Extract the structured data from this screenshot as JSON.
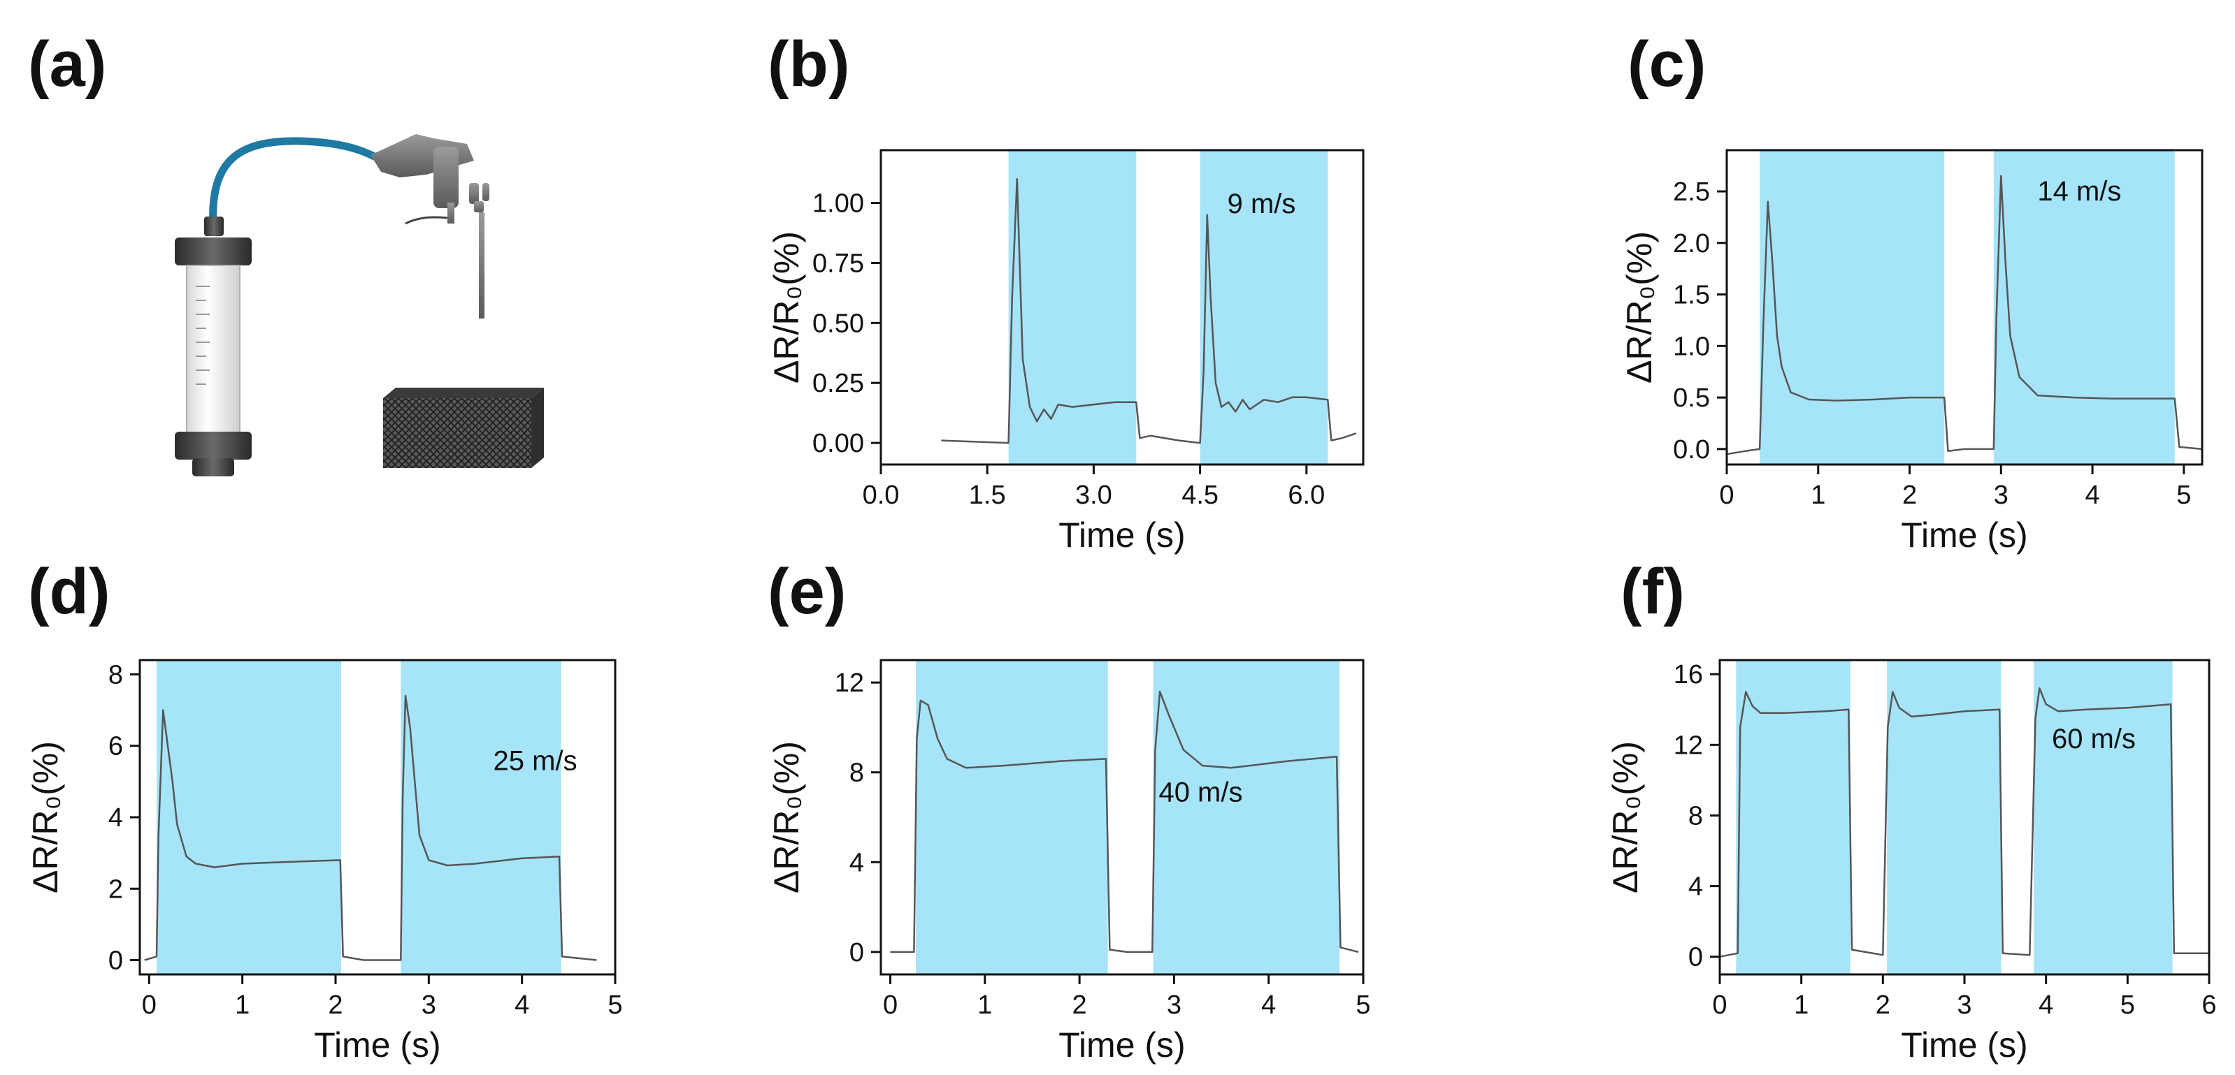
{
  "panel_labels": {
    "a": "(a)",
    "b": "(b)",
    "c": "(c)",
    "d": "(d)",
    "e": "(e)",
    "f": "(f)"
  },
  "colors": {
    "shade": "#a6e4f9",
    "trace": "#555555",
    "axis": "#111111",
    "tube": "#1e7aa3"
  },
  "chart_data": [
    {
      "id": "b",
      "type": "line",
      "title": "",
      "xlabel": "Time (s)",
      "ylabel": "ΔR/R₀(%)",
      "annotation": "9 m/s",
      "xlim": [
        0,
        6.8
      ],
      "ylim": [
        -0.09,
        1.22
      ],
      "xticks": [
        0,
        1.5,
        3,
        4.5,
        6
      ],
      "xticklabels": [
        "0.0",
        "1.5",
        "3.0",
        "4.5",
        "6.0"
      ],
      "yticks": [
        0,
        0.25,
        0.5,
        0.75,
        1.0
      ],
      "yticklabels": [
        "0.00",
        "0.25",
        "0.50",
        "0.75",
        "1.00"
      ],
      "shaded_intervals": [
        [
          1.8,
          3.6
        ],
        [
          4.5,
          6.3
        ]
      ],
      "series": [
        {
          "name": "9 m/s",
          "x": [
            0.85,
            1.8,
            1.85,
            1.92,
            2.0,
            2.1,
            2.2,
            2.3,
            2.4,
            2.5,
            2.7,
            3.0,
            3.3,
            3.6,
            3.65,
            3.8,
            4.2,
            4.5,
            4.55,
            4.6,
            4.65,
            4.72,
            4.8,
            4.9,
            5.0,
            5.1,
            5.2,
            5.4,
            5.6,
            5.8,
            6.0,
            6.3,
            6.35,
            6.5,
            6.7
          ],
          "y": [
            0.01,
            0.0,
            0.6,
            1.1,
            0.35,
            0.15,
            0.09,
            0.14,
            0.1,
            0.16,
            0.15,
            0.16,
            0.17,
            0.17,
            0.02,
            0.03,
            0.01,
            0.0,
            0.3,
            0.95,
            0.6,
            0.25,
            0.15,
            0.17,
            0.13,
            0.18,
            0.14,
            0.18,
            0.17,
            0.19,
            0.19,
            0.18,
            0.01,
            0.02,
            0.04
          ]
        }
      ]
    },
    {
      "id": "c",
      "type": "line",
      "title": "",
      "xlabel": "Time (s)",
      "ylabel": "ΔR/R₀(%)",
      "annotation": "14 m/s",
      "xlim": [
        0,
        5.2
      ],
      "ylim": [
        -0.15,
        2.9
      ],
      "xticks": [
        0,
        1,
        2,
        3,
        4,
        5
      ],
      "xticklabels": [
        "0",
        "1",
        "2",
        "3",
        "4",
        "5"
      ],
      "yticks": [
        0,
        0.5,
        1.0,
        1.5,
        2.0,
        2.5
      ],
      "yticklabels": [
        "0.0",
        "0.5",
        "1.0",
        "1.5",
        "2.0",
        "2.5"
      ],
      "shaded_intervals": [
        [
          0.36,
          2.38
        ],
        [
          2.92,
          4.9
        ]
      ],
      "series": [
        {
          "name": "14 m/s",
          "x": [
            0,
            0.2,
            0.36,
            0.4,
            0.45,
            0.5,
            0.55,
            0.6,
            0.7,
            0.9,
            1.2,
            1.6,
            2.0,
            2.38,
            2.42,
            2.6,
            2.92,
            2.95,
            3.0,
            3.05,
            3.1,
            3.2,
            3.4,
            3.8,
            4.2,
            4.6,
            4.9,
            4.95,
            5.2
          ],
          "y": [
            -0.05,
            -0.02,
            0.0,
            1.2,
            2.4,
            1.8,
            1.1,
            0.8,
            0.55,
            0.48,
            0.47,
            0.48,
            0.5,
            0.5,
            -0.02,
            0.0,
            0.0,
            1.3,
            2.65,
            1.8,
            1.1,
            0.7,
            0.52,
            0.5,
            0.49,
            0.49,
            0.49,
            0.02,
            0.0
          ]
        }
      ]
    },
    {
      "id": "d",
      "type": "line",
      "title": "",
      "xlabel": "Time (s)",
      "ylabel": "ΔR/R₀(%)",
      "annotation": "25 m/s",
      "xlim": [
        -0.1,
        5.0
      ],
      "ylim": [
        -0.4,
        8.4
      ],
      "xticks": [
        0,
        1,
        2,
        3,
        4,
        5
      ],
      "xticklabels": [
        "0",
        "1",
        "2",
        "3",
        "4",
        "5"
      ],
      "yticks": [
        0,
        2,
        4,
        6,
        8
      ],
      "yticklabels": [
        "0",
        "2",
        "4",
        "6",
        "8"
      ],
      "shaded_intervals": [
        [
          0.08,
          2.06
        ],
        [
          2.7,
          4.42
        ]
      ],
      "series": [
        {
          "name": "25 m/s",
          "x": [
            -0.05,
            0.08,
            0.1,
            0.15,
            0.2,
            0.25,
            0.3,
            0.4,
            0.5,
            0.7,
            1.0,
            1.5,
            2.05,
            2.08,
            2.3,
            2.7,
            2.72,
            2.75,
            2.8,
            2.85,
            2.9,
            3.0,
            3.2,
            3.5,
            4.0,
            4.4,
            4.43,
            4.8
          ],
          "y": [
            0.0,
            0.1,
            3.5,
            7.0,
            6.0,
            5.0,
            3.8,
            2.9,
            2.7,
            2.6,
            2.7,
            2.75,
            2.8,
            0.1,
            0.0,
            0.0,
            4.5,
            7.4,
            6.5,
            5.0,
            3.5,
            2.8,
            2.65,
            2.7,
            2.85,
            2.9,
            0.1,
            0.0
          ]
        }
      ]
    },
    {
      "id": "e",
      "type": "line",
      "title": "",
      "xlabel": "Time (s)",
      "ylabel": "ΔR/R₀(%)",
      "annotation": "40 m/s",
      "xlim": [
        -0.1,
        5.0
      ],
      "ylim": [
        -1.0,
        13.0
      ],
      "xticks": [
        0,
        1,
        2,
        3,
        4,
        5
      ],
      "xticklabels": [
        "0",
        "1",
        "2",
        "3",
        "4",
        "5"
      ],
      "yticks": [
        0,
        4,
        8,
        12
      ],
      "yticklabels": [
        "0",
        "4",
        "8",
        "12"
      ],
      "shaded_intervals": [
        [
          0.27,
          2.3
        ],
        [
          2.78,
          4.75
        ]
      ],
      "series": [
        {
          "name": "40 m/s",
          "x": [
            0.0,
            0.25,
            0.28,
            0.32,
            0.4,
            0.5,
            0.6,
            0.8,
            1.2,
            1.8,
            2.28,
            2.32,
            2.5,
            2.77,
            2.8,
            2.85,
            2.95,
            3.1,
            3.3,
            3.6,
            4.2,
            4.72,
            4.76,
            4.95
          ],
          "y": [
            0.0,
            0.0,
            9.5,
            11.2,
            11.0,
            9.5,
            8.6,
            8.2,
            8.3,
            8.5,
            8.6,
            0.1,
            0.0,
            0.0,
            9.0,
            11.6,
            10.5,
            9.0,
            8.3,
            8.2,
            8.5,
            8.7,
            0.2,
            0.0
          ]
        }
      ]
    },
    {
      "id": "f",
      "type": "line",
      "title": "",
      "xlabel": "Time (s)",
      "ylabel": "ΔR/R₀(%)",
      "annotation": "60 m/s",
      "xlim": [
        0,
        6
      ],
      "ylim": [
        -1.0,
        16.8
      ],
      "xticks": [
        0,
        1,
        2,
        3,
        4,
        5,
        6
      ],
      "xticklabels": [
        "0",
        "1",
        "2",
        "3",
        "4",
        "5",
        "6"
      ],
      "yticks": [
        0,
        4,
        8,
        12,
        16
      ],
      "yticklabels": [
        "0",
        "4",
        "8",
        "12",
        "16"
      ],
      "shaded_intervals": [
        [
          0.2,
          1.6
        ],
        [
          2.05,
          3.45
        ],
        [
          3.85,
          5.55
        ]
      ],
      "series": [
        {
          "name": "60 m/s",
          "x": [
            0.0,
            0.22,
            0.25,
            0.32,
            0.4,
            0.5,
            0.8,
            1.3,
            1.58,
            1.62,
            2.0,
            2.06,
            2.12,
            2.2,
            2.35,
            2.6,
            3.0,
            3.43,
            3.47,
            3.8,
            3.87,
            3.92,
            4.0,
            4.15,
            4.5,
            5.0,
            5.53,
            5.57,
            6.0
          ],
          "y": [
            0.0,
            0.2,
            13.0,
            15.0,
            14.2,
            13.8,
            13.8,
            13.9,
            14.0,
            0.4,
            0.1,
            13.0,
            15.0,
            14.1,
            13.6,
            13.7,
            13.9,
            14.0,
            0.2,
            0.1,
            13.5,
            15.2,
            14.3,
            13.9,
            14.0,
            14.1,
            14.3,
            0.2,
            0.2
          ]
        }
      ]
    }
  ]
}
